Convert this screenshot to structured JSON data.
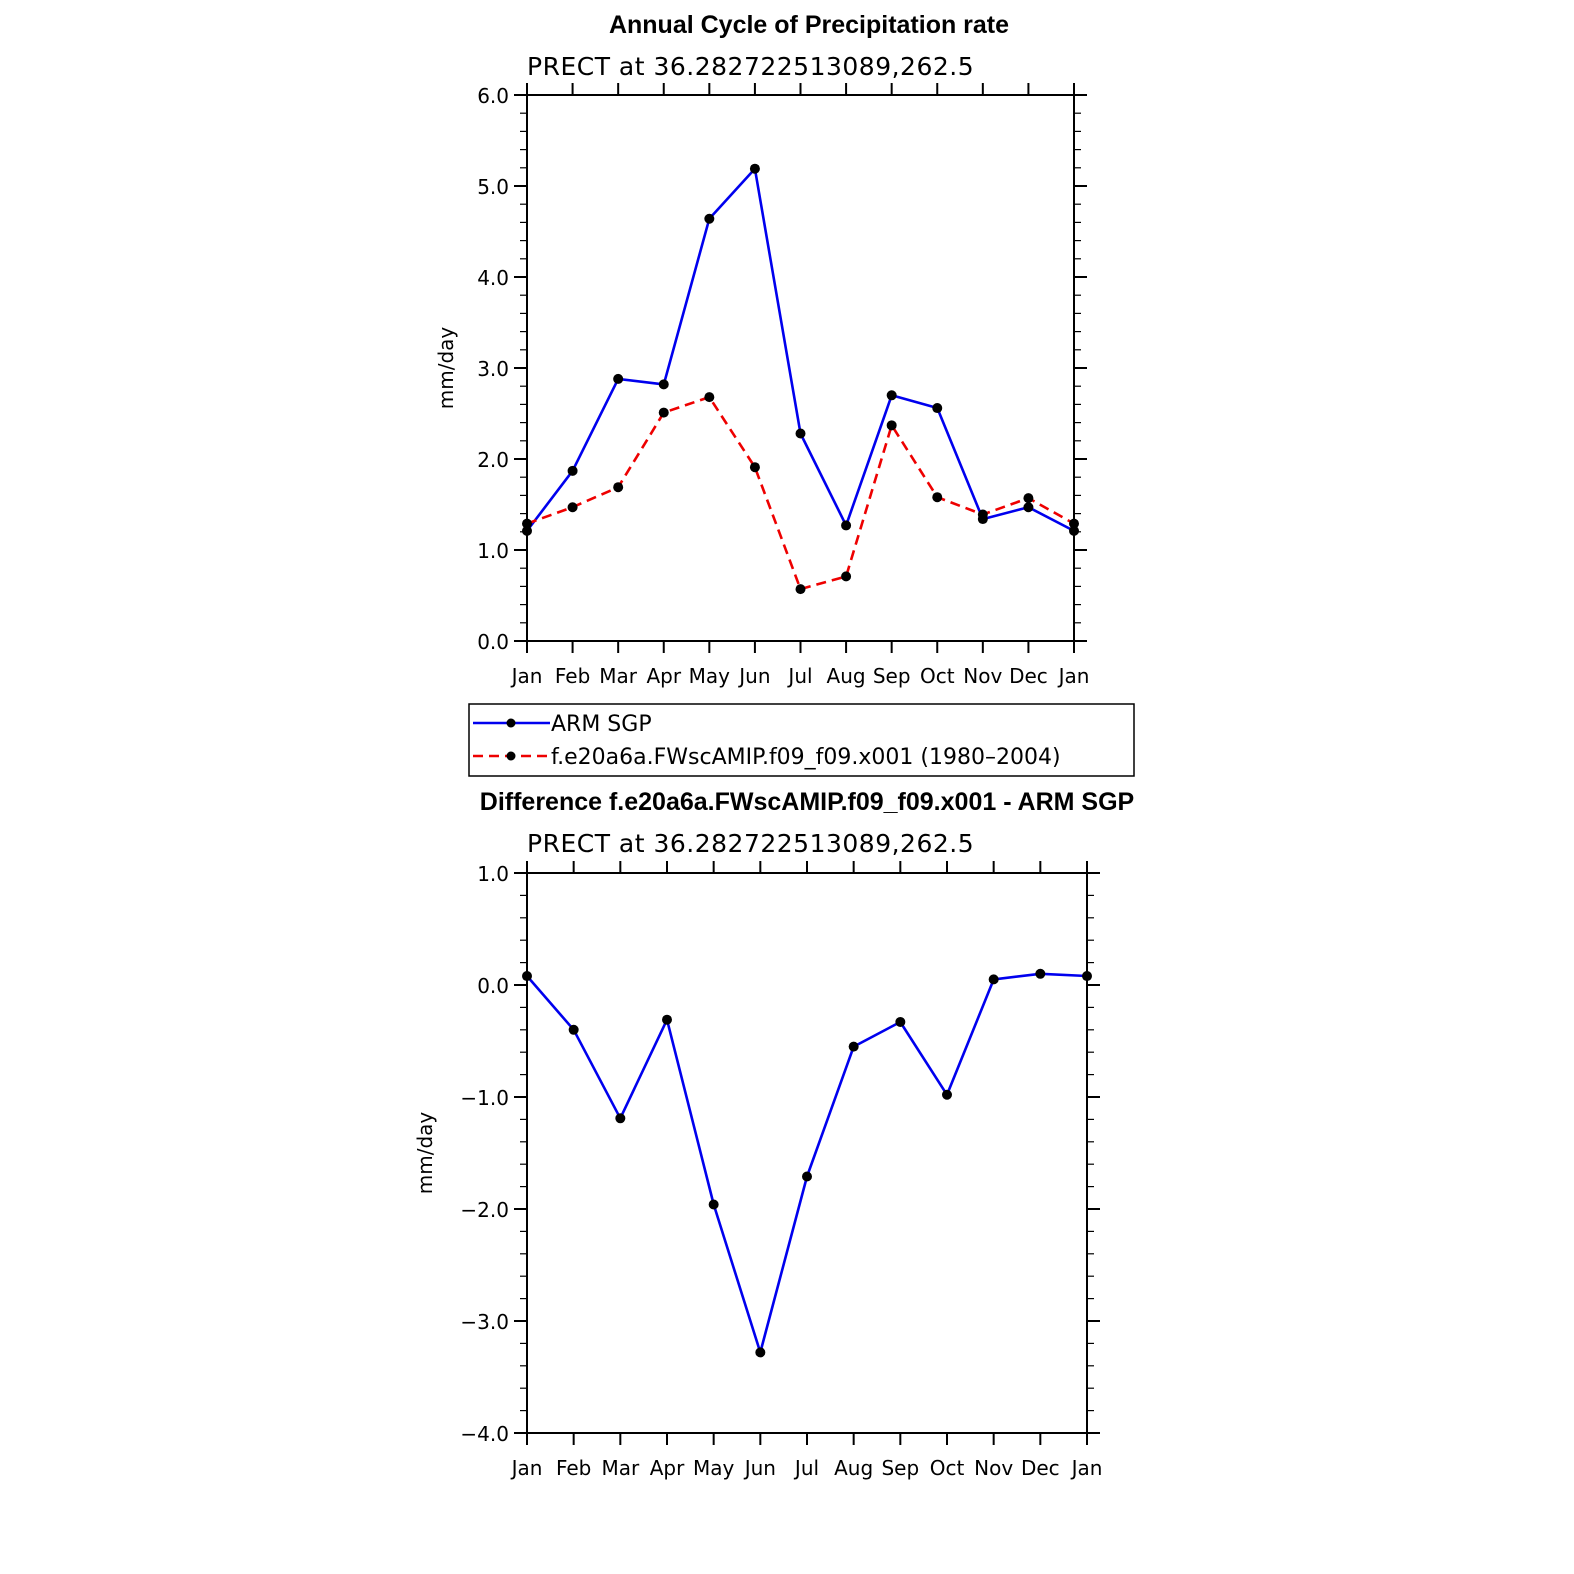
{
  "chart_data": [
    {
      "type": "line",
      "title": "Annual Cycle of Precipitation rate",
      "subtitle": "PRECT at 36.282722513089,262.5",
      "ylabel": "mm/day",
      "xlabel": "",
      "categories": [
        "Jan",
        "Feb",
        "Mar",
        "Apr",
        "May",
        "Jun",
        "Jul",
        "Aug",
        "Sep",
        "Oct",
        "Nov",
        "Dec",
        "Jan"
      ],
      "ylim": [
        0,
        6
      ],
      "yticks": [
        "0.0",
        "1.0",
        "2.0",
        "3.0",
        "4.0",
        "5.0",
        "6.0"
      ],
      "grid": false,
      "legend_position": "below",
      "series": [
        {
          "name": "ARM SGP",
          "color": "#0000ee",
          "style": "solid",
          "values": [
            1.21,
            1.87,
            2.88,
            2.82,
            4.64,
            5.19,
            2.28,
            1.27,
            2.7,
            2.56,
            1.34,
            1.47,
            1.21
          ]
        },
        {
          "name": "f.e20a6a.FWscAMIP.f09_f09.x001 (1980–2004)",
          "color": "#ee0000",
          "style": "dashed",
          "values": [
            1.29,
            1.47,
            1.69,
            2.51,
            2.68,
            1.91,
            0.57,
            0.71,
            2.37,
            1.58,
            1.39,
            1.57,
            1.29
          ]
        }
      ]
    },
    {
      "type": "line",
      "title": "Difference f.e20a6a.FWscAMIP.f09_f09.x001 - ARM SGP",
      "subtitle": "PRECT at 36.282722513089,262.5",
      "ylabel": "mm/day",
      "xlabel": "",
      "categories": [
        "Jan",
        "Feb",
        "Mar",
        "Apr",
        "May",
        "Jun",
        "Jul",
        "Aug",
        "Sep",
        "Oct",
        "Nov",
        "Dec",
        "Jan"
      ],
      "ylim": [
        -4,
        1
      ],
      "yticks": [
        "−4.0",
        "−3.0",
        "−2.0",
        "−1.0",
        "0.0",
        "1.0"
      ],
      "grid": false,
      "series": [
        {
          "color": "#0000ee",
          "style": "solid",
          "values": [
            0.08,
            -0.4,
            -1.19,
            -0.31,
            -1.96,
            -3.28,
            -1.71,
            -0.55,
            -0.33,
            -0.98,
            0.05,
            0.1,
            0.08
          ]
        }
      ]
    }
  ]
}
